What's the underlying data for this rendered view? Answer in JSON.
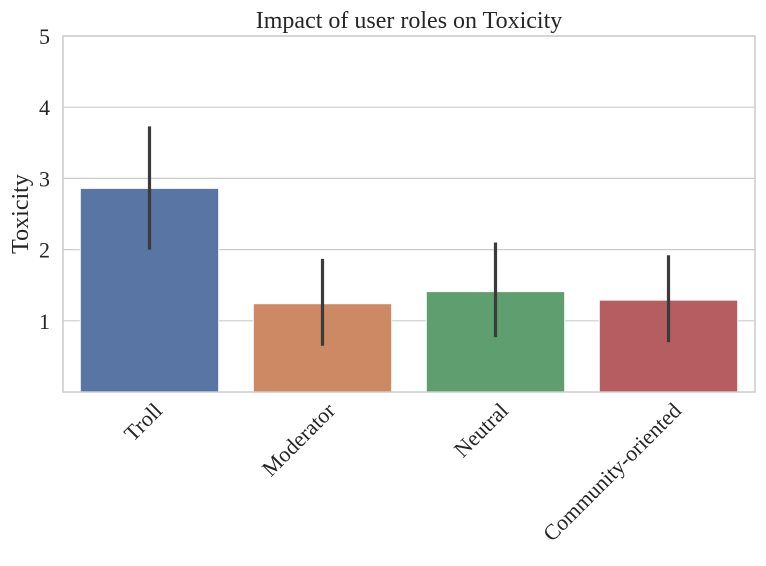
{
  "chart_data": {
    "type": "bar",
    "title": "Impact of user roles on Toxicity",
    "xlabel": "",
    "ylabel": "Toxicity",
    "categories": [
      "Troll",
      "Moderator",
      "Neutral",
      "Community-oriented"
    ],
    "values": [
      2.86,
      1.24,
      1.41,
      1.29
    ],
    "error_low": [
      2.0,
      0.65,
      0.77,
      0.7
    ],
    "error_high": [
      3.73,
      1.87,
      2.1,
      1.92
    ],
    "colors": [
      "#5875a4",
      "#cc8963",
      "#5f9e6e",
      "#b55d60"
    ],
    "error_color": "#3b3b3b",
    "ylim": [
      0,
      5
    ],
    "yticks": [
      1,
      2,
      3,
      4,
      5
    ],
    "grid": true,
    "x_tick_rotation": -45
  }
}
